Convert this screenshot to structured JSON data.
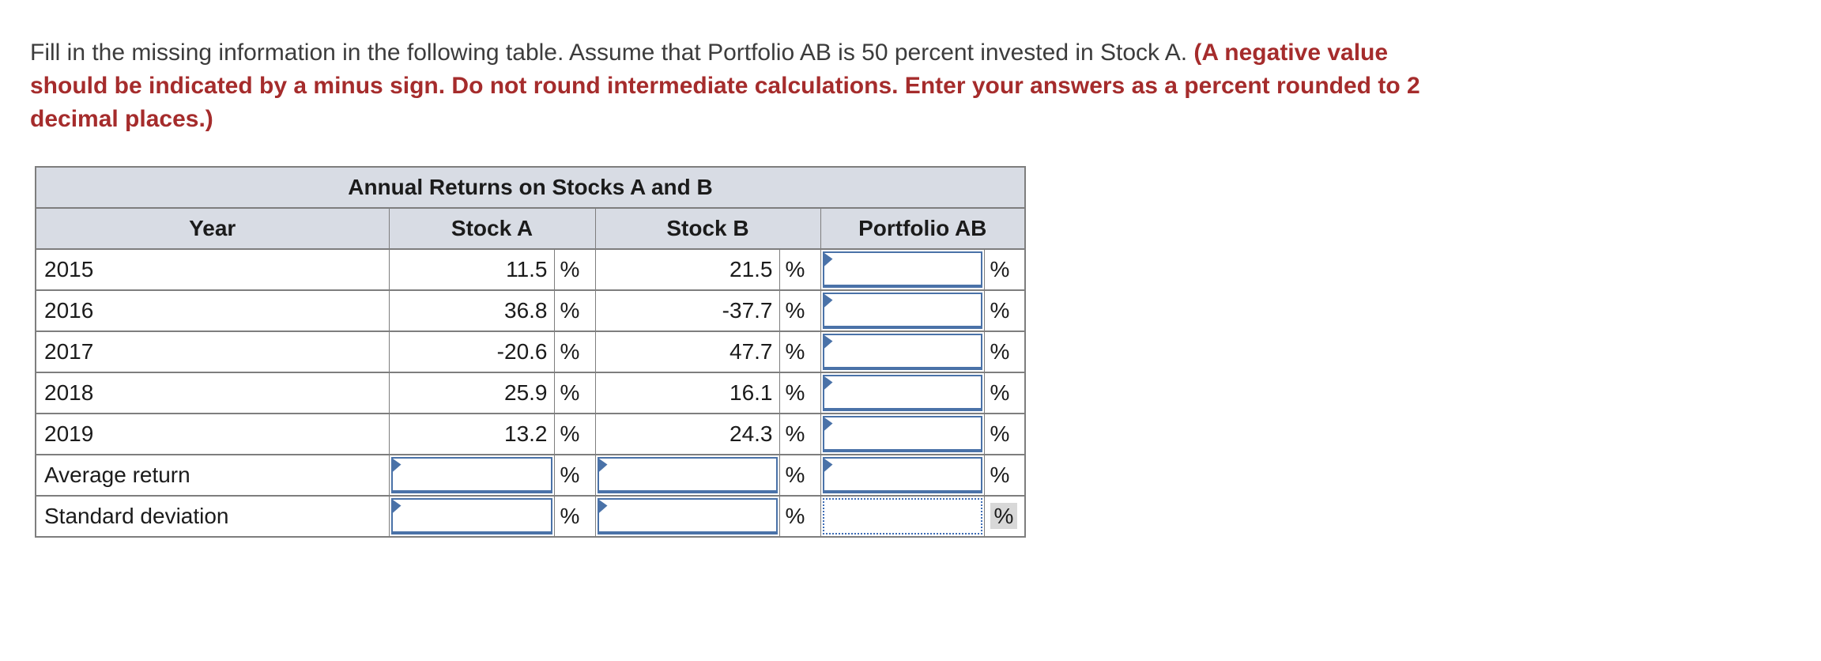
{
  "question": {
    "line1_black": "Fill in the missing information in the following table. Assume that Portfolio AB is 50 percent invested in Stock A. ",
    "line1_red": "(A negative value",
    "line2_red": "should be indicated by a minus sign. Do not round intermediate calculations. Enter your answers as a percent rounded to 2",
    "line3_red": "decimal places.)"
  },
  "table": {
    "title": "Annual Returns on Stocks A and B",
    "headers": {
      "year": "Year",
      "stock_a": "Stock A",
      "stock_b": "Stock B",
      "portfolio_ab": "Portfolio AB"
    },
    "percent": "%",
    "data_rows": [
      {
        "year": "2015",
        "stock_a": "11.5",
        "stock_b": "21.5",
        "portfolio_ab_input": ""
      },
      {
        "year": "2016",
        "stock_a": "36.8",
        "stock_b": "-37.7",
        "portfolio_ab_input": ""
      },
      {
        "year": "2017",
        "stock_a": "-20.6",
        "stock_b": "47.7",
        "portfolio_ab_input": ""
      },
      {
        "year": "2018",
        "stock_a": "25.9",
        "stock_b": "16.1",
        "portfolio_ab_input": ""
      },
      {
        "year": "2019",
        "stock_a": "13.2",
        "stock_b": "24.3",
        "portfolio_ab_input": ""
      }
    ],
    "summary_rows": [
      {
        "label": "Average return",
        "stock_a_input": "",
        "stock_b_input": "",
        "portfolio_ab_input": "",
        "portfolio_ab_style": "solid",
        "highlight_last_percent": false
      },
      {
        "label": "Standard deviation",
        "stock_a_input": "",
        "stock_b_input": "",
        "portfolio_ab_input": "",
        "portfolio_ab_style": "dotted",
        "highlight_last_percent": true
      }
    ]
  },
  "colors": {
    "accent_blue": "#4a72a8",
    "dotted_blue": "#3e6db6",
    "header_bg": "#d8dce4",
    "border_gray": "#7e7e7e",
    "red_text": "#a52c2c",
    "percent_highlight": "#d8d8d8"
  }
}
